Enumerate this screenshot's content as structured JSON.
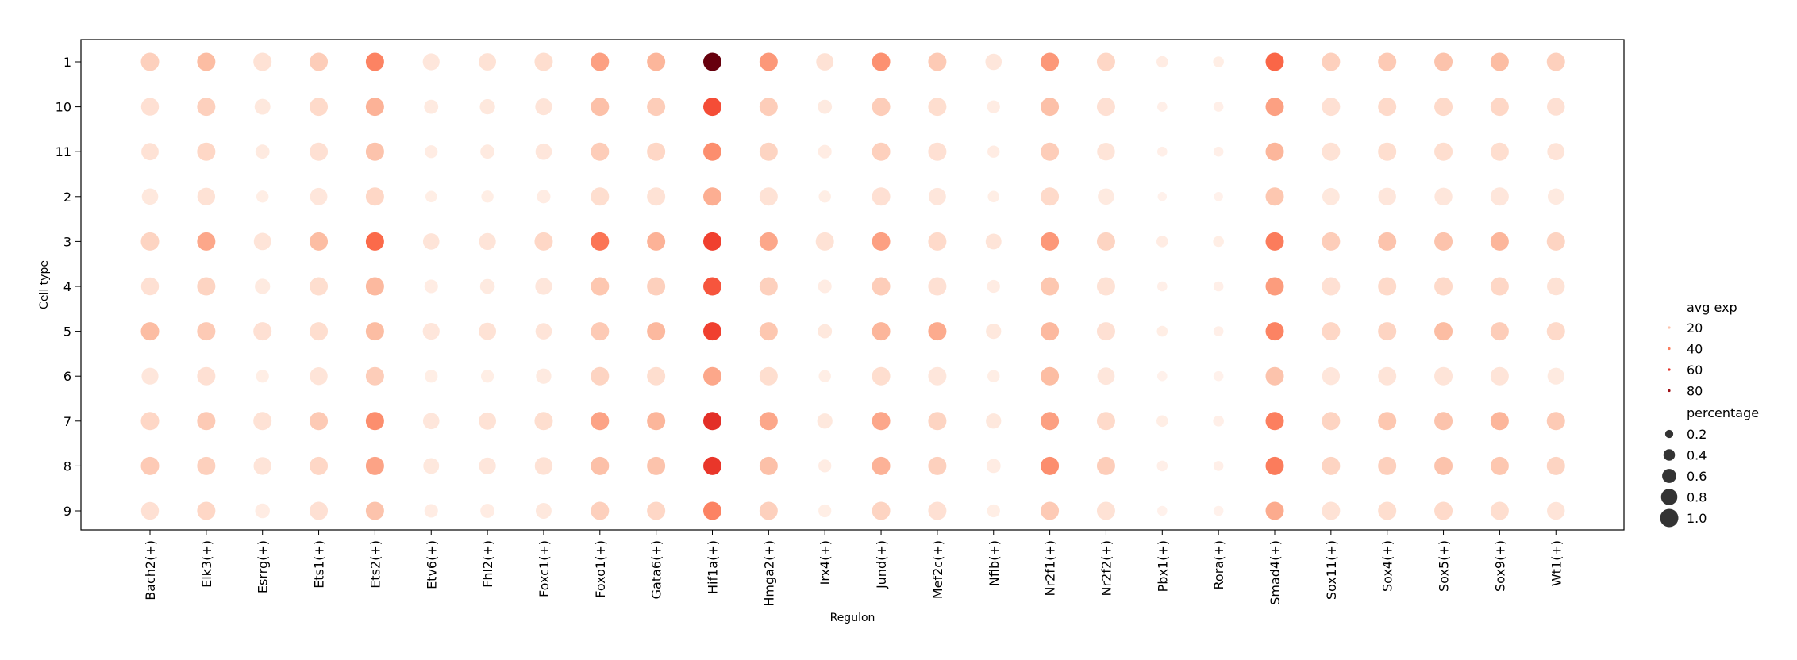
{
  "chart_data": {
    "type": "dotplot",
    "xlabel": "Regulon",
    "ylabel": "Cell type",
    "grid": false,
    "legend_position": "right",
    "colormap": "Reds",
    "categories_x": [
      "Bach2(+)",
      "Elk3(+)",
      "Esrrg(+)",
      "Ets1(+)",
      "Ets2(+)",
      "Etv6(+)",
      "Fhl2(+)",
      "Foxc1(+)",
      "Foxo1(+)",
      "Gata6(+)",
      "Hif1a(+)",
      "Hmga2(+)",
      "Irx4(+)",
      "Jund(+)",
      "Mef2c(+)",
      "Nfib(+)",
      "Nr2f1(+)",
      "Nr2f2(+)",
      "Pbx1(+)",
      "Rora(+)",
      "Smad4(+)",
      "Sox11(+)",
      "Sox4(+)",
      "Sox5(+)",
      "Sox9(+)",
      "Wt1(+)"
    ],
    "categories_y": [
      "1",
      "10",
      "11",
      "2",
      "3",
      "4",
      "5",
      "6",
      "7",
      "8",
      "9"
    ],
    "avg_exp_range": [
      0,
      90
    ],
    "avg_exp": [
      [
        16,
        22,
        10,
        17,
        38,
        8,
        10,
        12,
        30,
        24,
        90,
        32,
        10,
        34,
        18,
        8,
        32,
        14,
        5,
        4,
        46,
        16,
        18,
        20,
        22,
        16
      ],
      [
        11,
        16,
        7,
        13,
        25,
        6,
        7,
        9,
        21,
        17,
        52,
        17,
        6,
        17,
        12,
        5,
        21,
        11,
        3,
        3,
        30,
        11,
        13,
        13,
        14,
        11
      ],
      [
        10,
        14,
        6,
        11,
        20,
        5,
        6,
        8,
        17,
        14,
        35,
        15,
        5,
        16,
        11,
        5,
        17,
        9,
        3,
        3,
        24,
        10,
        12,
        12,
        12,
        9
      ],
      [
        7,
        10,
        4,
        8,
        14,
        4,
        4,
        5,
        12,
        10,
        26,
        10,
        4,
        11,
        8,
        4,
        13,
        6,
        2,
        2,
        19,
        7,
        8,
        8,
        8,
        6
      ],
      [
        15,
        28,
        9,
        22,
        45,
        9,
        9,
        14,
        42,
        25,
        55,
        28,
        10,
        30,
        13,
        9,
        32,
        15,
        5,
        4,
        40,
        17,
        20,
        20,
        24,
        15
      ],
      [
        11,
        15,
        6,
        12,
        23,
        5,
        6,
        8,
        19,
        16,
        50,
        16,
        5,
        17,
        11,
        5,
        19,
        10,
        3,
        3,
        31,
        11,
        13,
        13,
        14,
        10
      ],
      [
        22,
        18,
        11,
        12,
        22,
        8,
        10,
        9,
        18,
        23,
        55,
        19,
        7,
        24,
        27,
        7,
        23,
        11,
        4,
        3,
        38,
        14,
        15,
        22,
        17,
        13
      ],
      [
        8,
        11,
        4,
        9,
        17,
        4,
        4,
        6,
        15,
        12,
        28,
        12,
        4,
        12,
        8,
        4,
        22,
        8,
        2,
        2,
        20,
        8,
        9,
        9,
        9,
        6
      ],
      [
        14,
        18,
        10,
        18,
        35,
        8,
        10,
        12,
        29,
        24,
        60,
        28,
        7,
        28,
        15,
        7,
        30,
        13,
        4,
        3,
        39,
        15,
        19,
        20,
        24,
        18
      ],
      [
        18,
        16,
        9,
        14,
        29,
        7,
        8,
        10,
        21,
        20,
        58,
        21,
        5,
        25,
        16,
        5,
        35,
        17,
        3,
        3,
        40,
        15,
        16,
        20,
        19,
        15
      ],
      [
        11,
        14,
        5,
        11,
        20,
        5,
        5,
        7,
        16,
        14,
        38,
        16,
        4,
        15,
        11,
        4,
        18,
        10,
        2,
        2,
        27,
        10,
        12,
        13,
        12,
        9
      ]
    ],
    "percentage": [
      [
        1.0,
        1.0,
        1.0,
        1.0,
        1.0,
        0.85,
        0.9,
        1.0,
        1.0,
        1.0,
        1.0,
        1.0,
        0.9,
        1.0,
        1.0,
        0.8,
        1.0,
        1.0,
        0.4,
        0.35,
        1.0,
        1.0,
        1.0,
        1.0,
        1.0,
        1.0
      ],
      [
        0.95,
        1.0,
        0.75,
        1.0,
        1.0,
        0.6,
        0.7,
        0.85,
        1.0,
        1.0,
        1.0,
        1.0,
        0.6,
        1.0,
        1.0,
        0.5,
        1.0,
        1.0,
        0.3,
        0.3,
        1.0,
        1.0,
        1.0,
        1.0,
        1.0,
        0.95
      ],
      [
        0.9,
        1.0,
        0.6,
        1.0,
        1.0,
        0.5,
        0.6,
        0.8,
        1.0,
        1.0,
        1.0,
        1.0,
        0.55,
        1.0,
        1.0,
        0.45,
        1.0,
        0.95,
        0.3,
        0.3,
        1.0,
        1.0,
        1.0,
        1.0,
        1.0,
        0.9
      ],
      [
        0.8,
        0.95,
        0.45,
        0.9,
        1.0,
        0.4,
        0.45,
        0.55,
        1.0,
        1.0,
        1.0,
        1.0,
        0.45,
        1.0,
        0.9,
        0.4,
        1.0,
        0.8,
        0.25,
        0.25,
        1.0,
        0.9,
        0.95,
        0.95,
        1.0,
        0.8
      ],
      [
        1.0,
        1.0,
        0.9,
        1.0,
        1.0,
        0.8,
        0.85,
        1.0,
        1.0,
        1.0,
        1.0,
        1.0,
        1.0,
        1.0,
        1.0,
        0.75,
        1.0,
        1.0,
        0.4,
        0.35,
        1.0,
        1.0,
        1.0,
        1.0,
        1.0,
        1.0
      ],
      [
        0.95,
        1.0,
        0.7,
        1.0,
        1.0,
        0.55,
        0.65,
        0.85,
        1.0,
        1.0,
        1.0,
        1.0,
        0.55,
        1.0,
        1.0,
        0.5,
        1.0,
        1.0,
        0.3,
        0.3,
        1.0,
        1.0,
        1.0,
        1.0,
        1.0,
        0.95
      ],
      [
        1.0,
        1.0,
        1.0,
        1.0,
        1.0,
        0.85,
        0.9,
        0.8,
        1.0,
        1.0,
        1.0,
        1.0,
        0.6,
        1.0,
        1.0,
        0.7,
        1.0,
        1.0,
        0.35,
        0.3,
        1.0,
        1.0,
        1.0,
        1.0,
        1.0,
        1.0
      ],
      [
        0.85,
        1.0,
        0.5,
        0.95,
        1.0,
        0.5,
        0.5,
        0.7,
        1.0,
        1.0,
        1.0,
        1.0,
        0.45,
        1.0,
        1.0,
        0.45,
        1.0,
        0.9,
        0.3,
        0.3,
        1.0,
        0.95,
        1.0,
        1.0,
        1.0,
        0.85
      ],
      [
        1.0,
        1.0,
        1.0,
        1.0,
        1.0,
        0.8,
        0.9,
        1.0,
        1.0,
        1.0,
        1.0,
        1.0,
        0.7,
        1.0,
        1.0,
        0.7,
        1.0,
        1.0,
        0.4,
        0.35,
        1.0,
        1.0,
        1.0,
        1.0,
        1.0,
        1.0
      ],
      [
        1.0,
        1.0,
        0.95,
        1.0,
        1.0,
        0.75,
        0.85,
        0.95,
        1.0,
        1.0,
        1.0,
        1.0,
        0.5,
        1.0,
        1.0,
        0.6,
        1.0,
        1.0,
        0.35,
        0.3,
        1.0,
        1.0,
        1.0,
        1.0,
        1.0,
        1.0
      ],
      [
        0.95,
        1.0,
        0.65,
        1.0,
        1.0,
        0.55,
        0.6,
        0.75,
        1.0,
        1.0,
        1.0,
        1.0,
        0.5,
        1.0,
        1.0,
        0.5,
        1.0,
        1.0,
        0.3,
        0.3,
        1.0,
        1.0,
        1.0,
        1.0,
        1.0,
        0.95
      ]
    ],
    "legend_color": {
      "title": "avg exp",
      "entries": [
        {
          "label": "20",
          "value": 20
        },
        {
          "label": "40",
          "value": 40
        },
        {
          "label": "60",
          "value": 60
        },
        {
          "label": "80",
          "value": 80
        }
      ]
    },
    "legend_size": {
      "title": "percentage",
      "entries": [
        {
          "label": "0.2",
          "value": 0.2
        },
        {
          "label": "0.4",
          "value": 0.4
        },
        {
          "label": "0.6",
          "value": 0.6
        },
        {
          "label": "0.8",
          "value": 0.8
        },
        {
          "label": "1.0",
          "value": 1.0
        }
      ]
    }
  }
}
